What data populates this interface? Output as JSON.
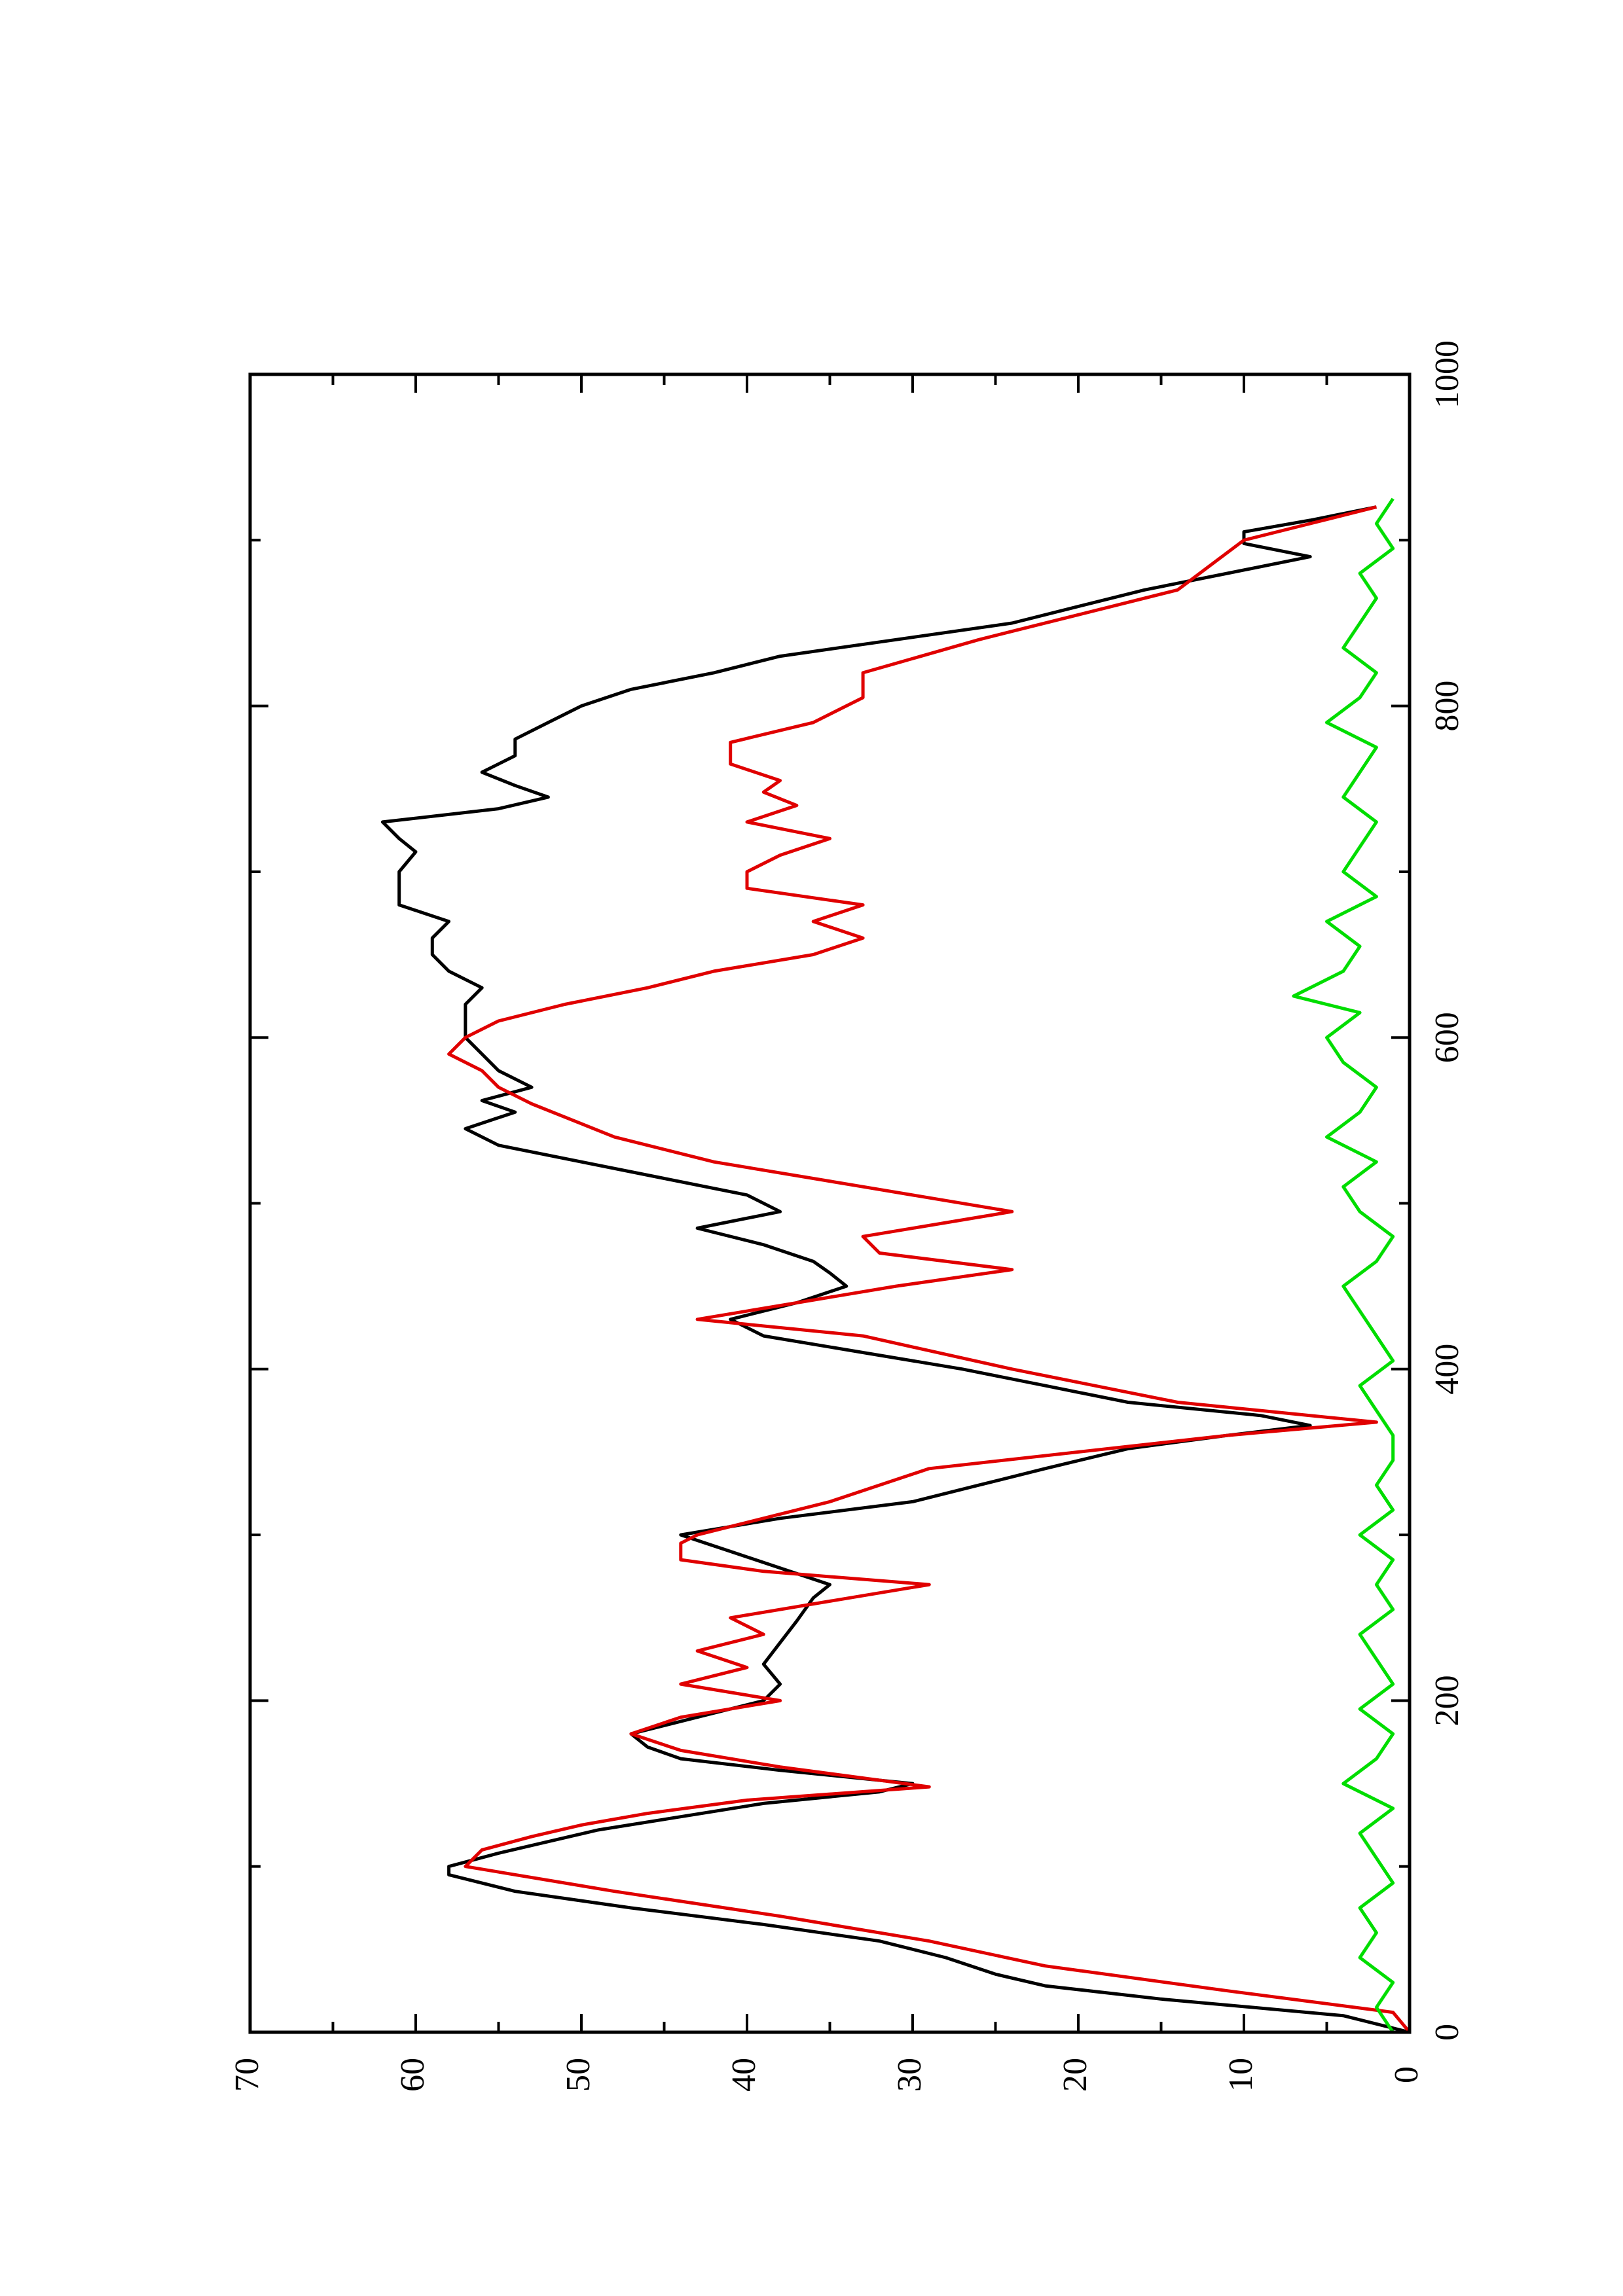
{
  "chart_data": {
    "type": "line",
    "title": "",
    "xlabel": "",
    "ylabel": "",
    "orientation": "rotated 90 degrees counter-clockwise (x axis runs bottom to top, y axis runs left to right)",
    "xlim": [
      0,
      1000
    ],
    "ylim": [
      0,
      70
    ],
    "xticks": [
      0,
      200,
      400,
      600,
      800,
      1000
    ],
    "yticks": [
      0,
      10,
      20,
      30,
      40,
      50,
      60,
      70
    ],
    "xtick_labels": [
      "0",
      "200",
      "400",
      "600",
      "800",
      "1000"
    ],
    "ytick_labels": [
      "0",
      "10",
      "20",
      "30",
      "40",
      "50",
      "60",
      "70"
    ],
    "grid": false,
    "legend": "none",
    "series": [
      {
        "color": "#000000",
        "x": [
          0,
          10,
          20,
          28,
          35,
          45,
          55,
          65,
          75,
          85,
          95,
          100,
          108,
          115,
          122,
          130,
          138,
          145,
          150,
          158,
          165,
          172,
          180,
          190,
          200,
          210,
          222,
          235,
          248,
          262,
          270,
          280,
          290,
          300,
          310,
          320,
          330,
          340,
          352,
          360,
          366,
          372,
          380,
          390,
          400,
          410,
          420,
          430,
          440,
          450,
          458,
          465,
          475,
          485,
          495,
          505,
          515,
          525,
          535,
          545,
          555,
          562,
          570,
          580,
          590,
          600,
          610,
          620,
          630,
          640,
          650,
          660,
          670,
          680,
          690,
          700,
          712,
          720,
          730,
          738,
          745,
          752,
          760,
          770,
          780,
          790,
          800,
          810,
          820,
          830,
          840,
          850,
          860,
          870,
          880,
          890,
          898,
          905,
          912,
          920
        ],
        "y": [
          0,
          4,
          15,
          22,
          25,
          28,
          32,
          39,
          47,
          54,
          58,
          58,
          55,
          52,
          49,
          44,
          39,
          32,
          30,
          38,
          44,
          46,
          47,
          43,
          39,
          38,
          39,
          38,
          37,
          36,
          35,
          38,
          41,
          44,
          38,
          30,
          26,
          22,
          17,
          11,
          6,
          9,
          17,
          22,
          27,
          33,
          39,
          41,
          37,
          34,
          35,
          36,
          39,
          43,
          38,
          40,
          45,
          50,
          55,
          57,
          54,
          56,
          53,
          55,
          56,
          57,
          57,
          57,
          56,
          58,
          59,
          59,
          58,
          61,
          61,
          61,
          60,
          61,
          62,
          55,
          52,
          54,
          56,
          54,
          54,
          52,
          50,
          47,
          42,
          38,
          31,
          24,
          20,
          16,
          11,
          6,
          10,
          10,
          6,
          2
        ]
      },
      {
        "color": "#e00000",
        "x": [
          0,
          12,
          25,
          40,
          55,
          70,
          85,
          100,
          110,
          118,
          125,
          132,
          140,
          148,
          160,
          170,
          180,
          190,
          200,
          210,
          220,
          230,
          240,
          250,
          260,
          270,
          278,
          285,
          295,
          300,
          320,
          340,
          360,
          368,
          380,
          400,
          420,
          430,
          440,
          450,
          460,
          470,
          480,
          495,
          510,
          525,
          540,
          560,
          570,
          580,
          590,
          600,
          610,
          620,
          630,
          640,
          650,
          660,
          670,
          680,
          690,
          700,
          710,
          720,
          730,
          740,
          748,
          755,
          765,
          778,
          790,
          805,
          820,
          840,
          845,
          855,
          870,
          885,
          900,
          910,
          920
        ],
        "y": [
          0,
          1,
          11,
          22,
          29,
          38,
          48,
          57,
          56,
          53,
          50,
          46,
          40,
          29,
          38,
          44,
          47,
          44,
          38,
          44,
          40,
          43,
          39,
          41,
          35,
          29,
          39,
          44,
          44,
          43,
          35,
          29,
          11,
          2,
          14,
          24,
          33,
          43,
          37,
          31,
          24,
          32,
          33,
          24,
          33,
          42,
          48,
          53,
          55,
          56,
          58,
          57,
          55,
          51,
          46,
          42,
          36,
          33,
          36,
          33,
          40,
          40,
          38,
          35,
          40,
          37,
          39,
          38,
          41,
          41,
          36,
          33,
          33,
          26,
          24,
          20,
          14,
          12,
          10,
          6,
          2
        ]
      },
      {
        "color": "#00dd00",
        "x": [
          0,
          15,
          30,
          45,
          60,
          75,
          90,
          105,
          120,
          135,
          150,
          165,
          180,
          195,
          210,
          225,
          240,
          255,
          270,
          285,
          300,
          315,
          330,
          345,
          360,
          375,
          390,
          405,
          420,
          435,
          450,
          465,
          480,
          495,
          510,
          525,
          540,
          555,
          570,
          585,
          600,
          615,
          625,
          640,
          655,
          670,
          685,
          700,
          715,
          730,
          745,
          760,
          775,
          790,
          805,
          820,
          835,
          850,
          865,
          880,
          895,
          910,
          925
        ],
        "y": [
          1,
          2,
          1,
          3,
          2,
          3,
          1,
          2,
          3,
          1,
          4,
          2,
          1,
          3,
          1,
          2,
          3,
          1,
          2,
          1,
          3,
          1,
          2,
          1,
          1,
          2,
          3,
          1,
          2,
          3,
          4,
          2,
          1,
          3,
          4,
          2,
          5,
          3,
          2,
          4,
          5,
          3,
          7,
          4,
          3,
          5,
          2,
          4,
          3,
          2,
          4,
          3,
          2,
          5,
          3,
          2,
          4,
          3,
          2,
          3,
          1,
          2,
          1
        ]
      }
    ]
  }
}
